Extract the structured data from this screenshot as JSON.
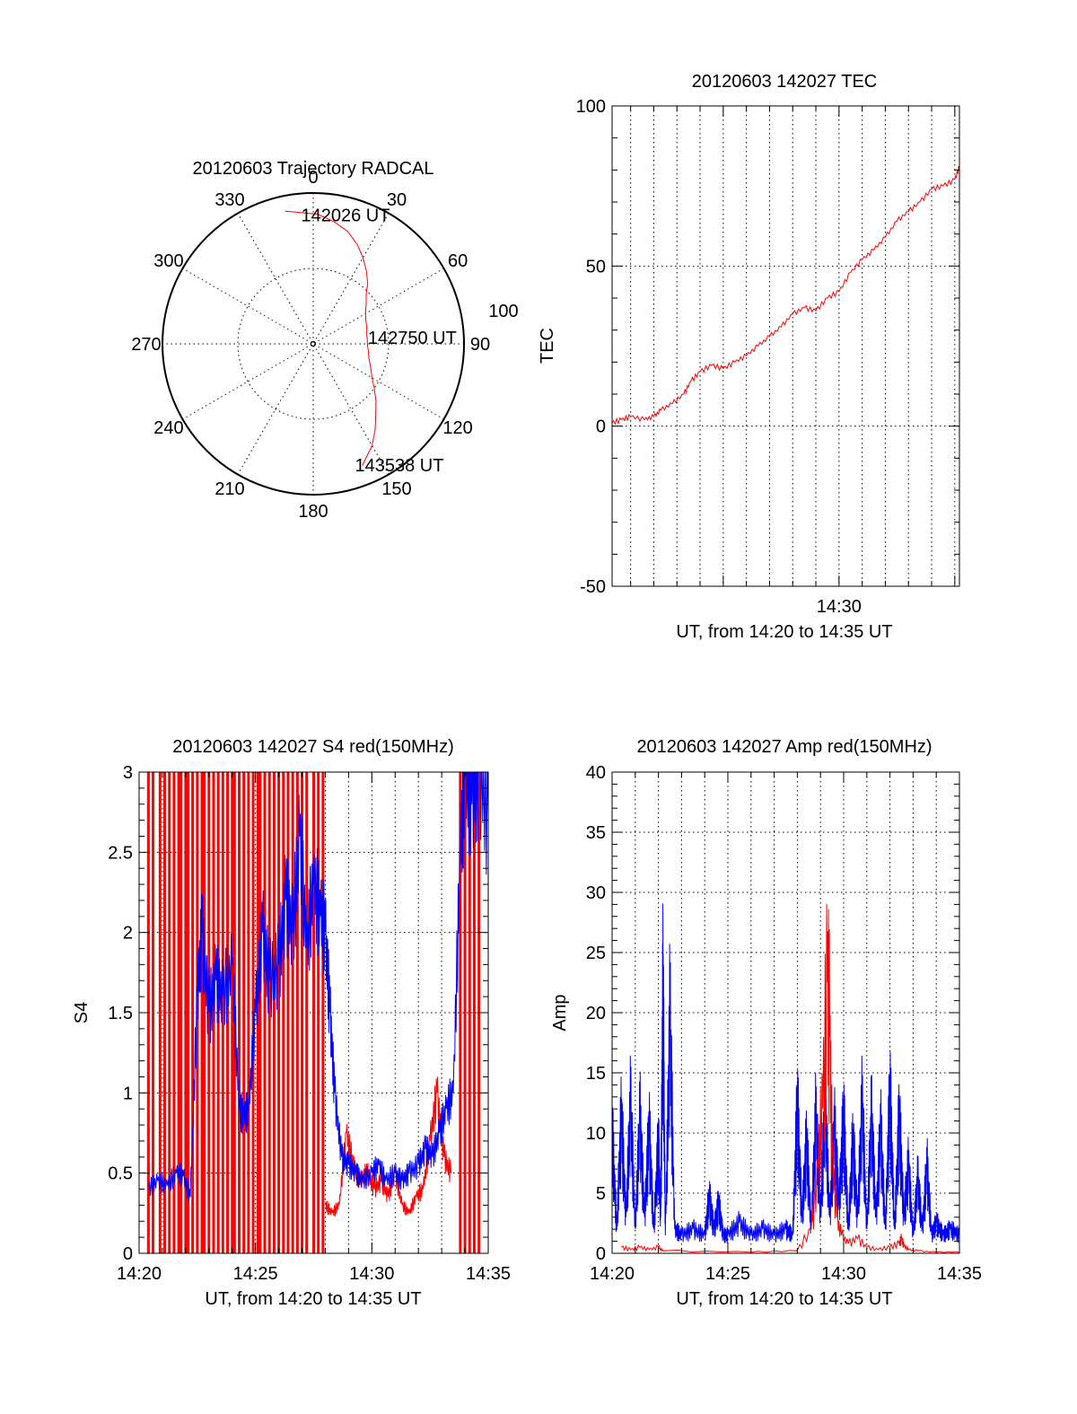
{
  "colors": {
    "red": "#ff0000",
    "blue": "#0000ff",
    "axis": "#000000",
    "grid": "#000000"
  },
  "chart_data": [
    {
      "id": "trajectory",
      "type": "polar",
      "title": "20120603 Trajectory RADCAL",
      "azimuth_labels": [
        "0",
        "30",
        "60",
        "90",
        "120",
        "150",
        "180",
        "210",
        "240",
        "270",
        "300",
        "330"
      ],
      "radial_label": "100",
      "radial_max": 100,
      "grid": true,
      "series": [
        {
          "color": "red",
          "points": [
            [
              348,
              90
            ],
            [
              2,
              86
            ],
            [
              10,
              82
            ],
            [
              17,
              78
            ],
            [
              24,
              72
            ],
            [
              30,
              66
            ],
            [
              36,
              60
            ],
            [
              42,
              54
            ],
            [
              47,
              48
            ],
            [
              53,
              44
            ],
            [
              60,
              40
            ],
            [
              67,
              38
            ],
            [
              74,
              37
            ],
            [
              80,
              36
            ],
            [
              85,
              36
            ],
            [
              92,
              36
            ],
            [
              98,
              37
            ],
            [
              104,
              38
            ],
            [
              112,
              41
            ],
            [
              120,
              45
            ],
            [
              126,
              50
            ],
            [
              132,
              56
            ],
            [
              138,
              62
            ],
            [
              144,
              70
            ],
            [
              150,
              78
            ],
            [
              154,
              82
            ],
            [
              158,
              87
            ]
          ]
        }
      ],
      "annotations": [
        {
          "text": "142026 UT",
          "az": 1,
          "r": 86
        },
        {
          "text": "142750 UT",
          "az": 84,
          "r": 46
        },
        {
          "text": "143538 UT",
          "az": 155,
          "r": 88
        }
      ]
    },
    {
      "id": "tec",
      "type": "line",
      "title": "20120603 142027 TEC",
      "xlabel": "UT, from 14:20 to 14:35 UT",
      "ylabel": "TEC",
      "x_range_minutes": [
        0.2,
        15.2
      ],
      "xticks": [
        {
          "t": 10,
          "label": "14:30"
        }
      ],
      "ylim": [
        -50,
        100
      ],
      "yticks": [
        -50,
        0,
        50,
        100
      ],
      "grid": true,
      "series": [
        {
          "color": "red",
          "x": [
            0.2,
            0.6,
            1.0,
            1.6,
            2.0,
            2.3,
            2.8,
            3.3,
            3.6,
            4.0,
            4.5,
            5.0,
            5.5,
            6.0,
            6.5,
            7.0,
            7.5,
            8.0,
            8.5,
            9.0,
            9.5,
            10.0,
            10.5,
            11.0,
            11.5,
            12.0,
            12.5,
            13.0,
            13.5,
            14.0,
            14.5,
            15.0,
            15.2
          ],
          "y": [
            1,
            2,
            3,
            2,
            3,
            5,
            7,
            10,
            14,
            17,
            19,
            18,
            20,
            22,
            25,
            28,
            31,
            35,
            37,
            36,
            40,
            42,
            48,
            52,
            55,
            59,
            64,
            67,
            70,
            74,
            75,
            77,
            81
          ]
        }
      ]
    },
    {
      "id": "s4",
      "type": "line",
      "title": "20120603 142027 S4 red(150MHz)",
      "xlabel": "UT, from 14:20 to 14:35 UT",
      "ylabel": "S4",
      "xlim": [
        0,
        15
      ],
      "xticks": [
        {
          "t": 0,
          "label": "14:20"
        },
        {
          "t": 5,
          "label": "14:25"
        },
        {
          "t": 10,
          "label": "14:30"
        },
        {
          "t": 15,
          "label": "14:35"
        }
      ],
      "ylim": [
        0,
        3
      ],
      "yticks": [
        {
          "v": 0,
          "label": "0"
        },
        {
          "v": 0.5,
          "label": "0.5"
        },
        {
          "v": 1,
          "label": "1"
        },
        {
          "v": 1.5,
          "label": "1.5"
        },
        {
          "v": 2,
          "label": "2"
        },
        {
          "v": 2.5,
          "label": "2.5"
        },
        {
          "v": 3,
          "label": "3"
        }
      ],
      "grid": true,
      "red_spikes_t": [
        0.4,
        0.6,
        0.9,
        1.1,
        1.3,
        1.5,
        1.7,
        1.8,
        2.0,
        2.1,
        2.3,
        2.5,
        2.7,
        2.8,
        3.0,
        3.2,
        3.4,
        3.6,
        3.8,
        4.0,
        4.1,
        4.3,
        4.5,
        4.7,
        4.9,
        5.1,
        5.2,
        5.4,
        5.6,
        5.8,
        6.0,
        6.2,
        6.4,
        6.6,
        6.8,
        7.0,
        7.2,
        7.5,
        7.7,
        7.9,
        13.8,
        14.0,
        14.2,
        14.4,
        14.6
      ],
      "series": [
        {
          "color": "red",
          "x": [
            8.0,
            8.3,
            8.6,
            8.9,
            9.2,
            9.5,
            9.8,
            10.1,
            10.4,
            10.7,
            11.0,
            11.3,
            11.6,
            11.9,
            12.2,
            12.5,
            12.8,
            13.1,
            13.4
          ],
          "y": [
            0.3,
            0.25,
            0.3,
            0.75,
            0.55,
            0.45,
            0.5,
            0.4,
            0.45,
            0.35,
            0.5,
            0.3,
            0.25,
            0.35,
            0.4,
            0.7,
            1.0,
            0.6,
            0.5
          ]
        },
        {
          "color": "blue",
          "x": [
            0.4,
            0.8,
            1.2,
            1.6,
            1.9,
            2.2,
            2.5,
            2.7,
            3.0,
            3.3,
            3.6,
            4.0,
            4.3,
            4.5,
            4.7,
            5.0,
            5.3,
            5.6,
            6.0,
            6.3,
            6.6,
            6.9,
            7.2,
            7.5,
            7.8,
            8.0,
            8.2,
            8.4,
            8.7,
            9.0,
            9.3,
            9.6,
            10.0,
            10.3,
            10.6,
            11.0,
            11.3,
            11.6,
            12.0,
            12.3,
            12.6,
            12.9,
            13.2,
            13.5,
            13.8,
            14.0,
            14.3,
            14.6,
            15.0
          ],
          "y": [
            0.4,
            0.45,
            0.42,
            0.5,
            0.48,
            0.35,
            1.6,
            2.0,
            1.5,
            1.7,
            1.6,
            1.8,
            0.9,
            0.85,
            0.9,
            1.5,
            2.0,
            1.7,
            1.8,
            2.2,
            2.0,
            2.6,
            1.9,
            2.3,
            2.1,
            2.0,
            1.5,
            1.0,
            0.6,
            0.55,
            0.5,
            0.45,
            0.5,
            0.55,
            0.45,
            0.5,
            0.45,
            0.5,
            0.55,
            0.65,
            0.6,
            0.75,
            0.9,
            1.0,
            2.5,
            3.0,
            2.8,
            3.0,
            2.7
          ]
        }
      ]
    },
    {
      "id": "amp",
      "type": "line",
      "title": "20120603 142027 Amp red(150MHz)",
      "xlabel": "UT, from 14:20 to 14:35 UT",
      "ylabel": "Amp",
      "xlim": [
        0,
        15
      ],
      "xticks": [
        {
          "t": 0,
          "label": "14:20"
        },
        {
          "t": 5,
          "label": "14:25"
        },
        {
          "t": 10,
          "label": "14:30"
        },
        {
          "t": 15,
          "label": "14:35"
        }
      ],
      "ylim": [
        0,
        40
      ],
      "yticks": [
        0,
        5,
        10,
        15,
        20,
        25,
        30,
        35,
        40
      ],
      "grid": true,
      "series": [
        {
          "color": "blue",
          "x": [
            0.0,
            0.2,
            0.4,
            0.6,
            0.8,
            1.0,
            1.2,
            1.4,
            1.6,
            1.8,
            2.0,
            2.1,
            2.2,
            2.3,
            2.5,
            2.7,
            3.0,
            3.5,
            4.0,
            4.2,
            4.4,
            4.6,
            4.8,
            5.0,
            5.5,
            6.0,
            6.5,
            7.0,
            7.5,
            7.8,
            8.0,
            8.2,
            8.4,
            8.6,
            8.8,
            9.0,
            9.2,
            9.4,
            9.6,
            9.8,
            10.0,
            10.2,
            10.4,
            10.6,
            10.8,
            11.0,
            11.2,
            11.4,
            11.6,
            11.8,
            12.0,
            12.2,
            12.4,
            12.6,
            12.8,
            13.0,
            13.2,
            13.4,
            13.6,
            13.8,
            14.0,
            14.3,
            14.6,
            15.0
          ],
          "y": [
            10,
            2,
            11,
            3,
            12,
            2,
            11,
            3,
            10,
            2,
            9,
            3,
            22,
            1.5,
            19,
            2,
            1.5,
            2,
            1.5,
            4.5,
            2,
            4,
            1.5,
            1.5,
            2.5,
            1.5,
            2,
            1.5,
            2,
            1.5,
            12,
            3,
            9,
            2,
            11,
            3,
            12,
            3,
            10,
            4,
            11,
            2,
            9,
            3,
            12,
            2,
            11,
            3,
            10,
            2,
            13,
            2,
            11,
            3,
            7,
            1.5,
            6,
            2,
            7,
            1.5,
            2.5,
            1.5,
            2,
            1.5
          ]
        },
        {
          "color": "red",
          "x": [
            0.4,
            0.8,
            1.2,
            1.6,
            2.0,
            2.2,
            6.0,
            8.0,
            8.6,
            8.9,
            9.1,
            9.3,
            9.4,
            9.5,
            9.7,
            9.9,
            10.2,
            10.6,
            11.0,
            11.5,
            12.0,
            12.4,
            12.5,
            12.6,
            12.8,
            13.2,
            14.0,
            15.0
          ],
          "y": [
            0.5,
            0.3,
            0.5,
            0.3,
            0.5,
            0.2,
            0.1,
            0.2,
            2,
            7,
            12,
            22.5,
            18,
            8,
            3,
            1.5,
            0.8,
            1.2,
            0.5,
            0.3,
            0.5,
            0.8,
            1.2,
            0.6,
            0.3,
            0.2,
            0.1,
            0.1
          ]
        }
      ]
    }
  ]
}
